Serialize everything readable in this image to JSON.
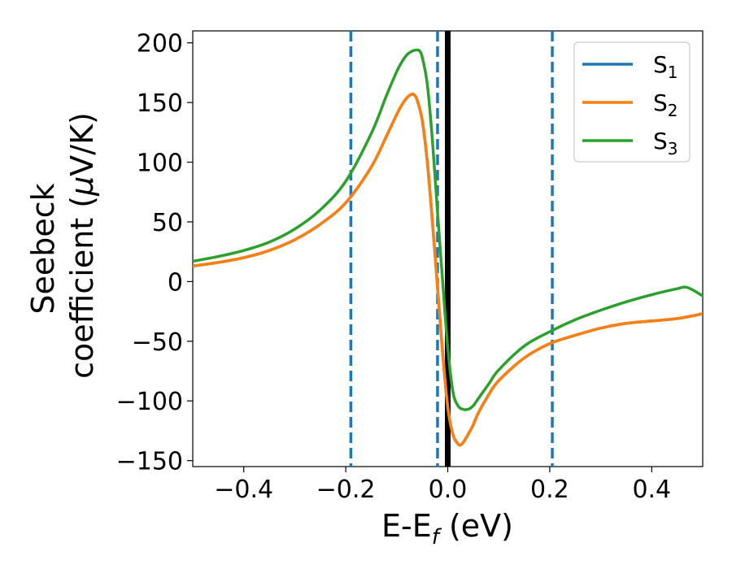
{
  "chart_data": {
    "type": "line",
    "title": "",
    "xlabel": {
      "main": "E-E",
      "sub": "f",
      "tail": " (eV)"
    },
    "ylabel": {
      "line1": "Seebeck",
      "line2_pre": "coefficient  (",
      "mu": "μ",
      "line2_post": "V/K)"
    },
    "xlim": [
      -0.5,
      0.5
    ],
    "ylim": [
      -155,
      210
    ],
    "xticks": [
      -0.4,
      -0.2,
      0.0,
      0.2,
      0.4
    ],
    "xtick_labels": [
      "−0.4",
      "−0.2",
      "0.0",
      "0.2",
      "0.4"
    ],
    "yticks": [
      -150,
      -100,
      -50,
      0,
      50,
      100,
      150,
      200
    ],
    "ytick_labels": [
      "−150",
      "−100",
      "−50",
      "0",
      "50",
      "100",
      "150",
      "200"
    ],
    "grid": false,
    "legend_placement": "top-right",
    "vlines": [
      {
        "x": -0.19,
        "style": "dashed",
        "color": "#1f77b4"
      },
      {
        "x": -0.02,
        "style": "dashed",
        "color": "#1f77b4"
      },
      {
        "x": 0.205,
        "style": "dashed",
        "color": "#1f77b4"
      },
      {
        "x": 0.0,
        "style": "solid",
        "color": "#000000"
      }
    ],
    "series": [
      {
        "name": "S",
        "sub": "1",
        "color": "#1f77b4",
        "x": [
          -0.5,
          -0.45,
          -0.4,
          -0.35,
          -0.3,
          -0.25,
          -0.2,
          -0.15,
          -0.12,
          -0.1,
          -0.09,
          -0.08,
          -0.07,
          -0.065,
          -0.06,
          -0.05,
          -0.04,
          -0.03,
          -0.02,
          -0.01,
          0.0,
          0.01,
          0.02,
          0.025,
          0.03,
          0.04,
          0.05,
          0.06,
          0.08,
          0.1,
          0.15,
          0.2,
          0.25,
          0.3,
          0.35,
          0.4,
          0.45,
          0.5
        ],
        "y": [
          13,
          16,
          20,
          26,
          35,
          48,
          66,
          96,
          122,
          140,
          148,
          154,
          157,
          156,
          152,
          135,
          100,
          50,
          -5,
          -60,
          -105,
          -128,
          -136,
          -137,
          -135,
          -128,
          -120,
          -110,
          -95,
          -83,
          -64,
          -52,
          -45,
          -39,
          -35,
          -33,
          -31,
          -27
        ]
      },
      {
        "name": "S",
        "sub": "2",
        "color": "#ff7f0e",
        "x": [
          -0.5,
          -0.45,
          -0.4,
          -0.35,
          -0.3,
          -0.25,
          -0.2,
          -0.15,
          -0.12,
          -0.1,
          -0.09,
          -0.08,
          -0.07,
          -0.065,
          -0.06,
          -0.05,
          -0.04,
          -0.03,
          -0.02,
          -0.01,
          0.0,
          0.01,
          0.02,
          0.025,
          0.03,
          0.04,
          0.05,
          0.06,
          0.08,
          0.1,
          0.15,
          0.2,
          0.25,
          0.3,
          0.35,
          0.4,
          0.45,
          0.5
        ],
        "y": [
          13,
          16,
          20,
          26,
          35,
          48,
          66,
          96,
          122,
          140,
          148,
          154,
          157,
          156,
          152,
          135,
          100,
          50,
          -5,
          -60,
          -105,
          -128,
          -136,
          -137,
          -135,
          -128,
          -120,
          -110,
          -95,
          -83,
          -64,
          -52,
          -45,
          -39,
          -35,
          -33,
          -31,
          -27
        ]
      },
      {
        "name": "S",
        "sub": "3",
        "color": "#2ca02c",
        "x": [
          -0.5,
          -0.45,
          -0.4,
          -0.35,
          -0.3,
          -0.25,
          -0.2,
          -0.15,
          -0.12,
          -0.1,
          -0.09,
          -0.08,
          -0.07,
          -0.06,
          -0.055,
          -0.05,
          -0.04,
          -0.03,
          -0.02,
          -0.01,
          0.0,
          0.01,
          0.02,
          0.03,
          0.04,
          0.05,
          0.06,
          0.08,
          0.1,
          0.15,
          0.2,
          0.25,
          0.3,
          0.35,
          0.4,
          0.45,
          0.47,
          0.5
        ],
        "y": [
          17,
          21,
          26,
          33,
          44,
          60,
          84,
          124,
          156,
          176,
          184,
          190,
          193,
          194,
          193,
          188,
          165,
          118,
          58,
          0,
          -55,
          -92,
          -104,
          -107,
          -107,
          -104,
          -98,
          -86,
          -74,
          -54,
          -42,
          -32,
          -24,
          -17,
          -11,
          -6,
          -5,
          -12
        ]
      }
    ]
  }
}
